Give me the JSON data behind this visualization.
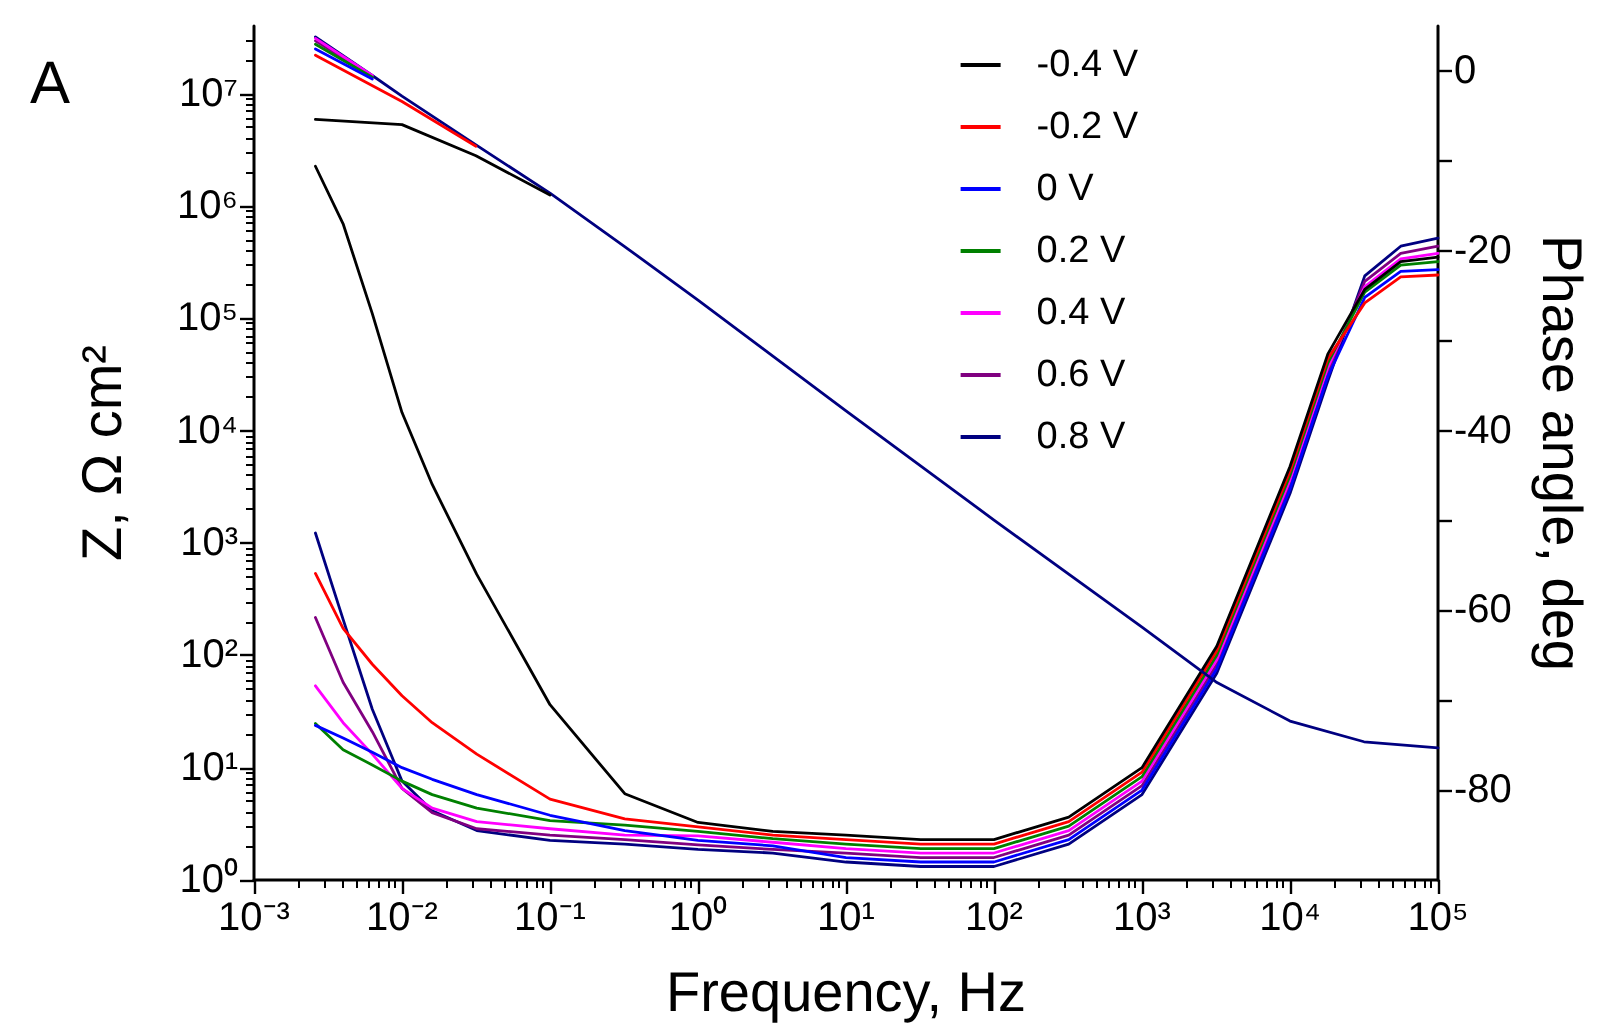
{
  "chart_data": {
    "type": "line",
    "title": "A",
    "xlabel": "Frequency, Hz",
    "ylabel": "Z, Ω cm²",
    "y2label": "Phase angle, deg",
    "log": "xy",
    "grid": false,
    "legend": "top right",
    "xlim": [
      0.001,
      100000
    ],
    "xticks": [
      {
        "value": 0.001,
        "label": "10⁻³"
      },
      {
        "value": 0.01,
        "label": "10⁻²"
      },
      {
        "value": 0.1,
        "label": "10⁻¹"
      },
      {
        "value": 1,
        "label": "10⁰"
      },
      {
        "value": 10,
        "label": "10¹"
      },
      {
        "value": 100,
        "label": "10²"
      },
      {
        "value": 1000,
        "label": "10³"
      },
      {
        "value": 10000,
        "label": "10⁴"
      },
      {
        "value": 100000,
        "label": "10⁵"
      }
    ],
    "ylim": [
      1,
      40000000
    ],
    "yticks": [
      {
        "value": 1,
        "label": "10⁰"
      },
      {
        "value": 10,
        "label": "10¹"
      },
      {
        "value": 100,
        "label": "10²"
      },
      {
        "value": 1000,
        "label": "10³"
      },
      {
        "value": 10000,
        "label": "10⁴"
      },
      {
        "value": 100000,
        "label": "10⁵"
      },
      {
        "value": 1000000,
        "label": "10⁶"
      },
      {
        "value": 10000000,
        "label": "10⁷"
      }
    ],
    "y2lim": [
      -90,
      5
    ],
    "y2ticks": [
      -80,
      {
        "value": -70,
        "label": null
      },
      -60,
      {
        "value": -50,
        "label": null
      },
      -40,
      {
        "value": -30,
        "label": null
      },
      -20,
      {
        "value": -10,
        "label": null
      },
      0
    ],
    "series": [
      {
        "name": "-0.4 V",
        "color": "#000000",
        "x": [
          0.0026,
          0.01,
          0.0316,
          0.1
        ],
        "values": [
          5900000,
          5300000,
          2800000,
          1250000
        ]
      },
      {
        "name": "-0.2 V",
        "color": "#ff0000",
        "x": [
          0.0026,
          0.01,
          0.0316
        ],
        "values": [
          22000000,
          8500000,
          3400000
        ]
      },
      {
        "name": "0 V",
        "color": "#0000ff",
        "x": [
          0.0026,
          0.0063
        ],
        "values": [
          25000000,
          13500000
        ]
      },
      {
        "name": "0.2 V",
        "color": "#008000",
        "x": [
          0.0026,
          0.0063
        ],
        "values": [
          27500000,
          14000000
        ]
      },
      {
        "name": "0.4 V",
        "color": "#ff00ff",
        "x": [
          0.0026,
          0.0063
        ],
        "values": [
          31000000,
          14500000
        ]
      },
      {
        "name": "0.6 V",
        "color": "#800080",
        "x": [
          0.0026,
          0.0063
        ],
        "values": [
          29500000,
          14200000
        ]
      },
      {
        "name": "0.8 V",
        "color": "#000080",
        "x": [
          0.0026,
          0.0063,
          0.01,
          0.0316,
          0.1,
          0.316,
          1,
          10,
          100,
          1000,
          3162,
          10000,
          31623,
          100000
        ],
        "values": [
          32000000,
          14500000,
          9500000,
          3500000,
          1300000,
          440000,
          145000,
          15000,
          1600,
          178,
          58,
          26,
          17,
          15
        ]
      },
      {
        "color": "#000000",
        "axis": "y2",
        "x": [
          0.0026,
          0.004,
          0.0063,
          0.01,
          0.016,
          0.032,
          0.1,
          0.32,
          1,
          3.2,
          10,
          32,
          100,
          320,
          1000,
          3200,
          10000,
          18000,
          32000,
          56000,
          100000
        ],
        "values": [
          -10.6,
          -17,
          -27,
          -38,
          -46,
          -56,
          -70.5,
          -80.4,
          -83.6,
          -84.6,
          -85,
          -85.5,
          -85.5,
          -83,
          -77.5,
          -64,
          -44,
          -31.5,
          -24.3,
          -21.2,
          -20.7
        ]
      },
      {
        "color": "#ff0000",
        "axis": "y2",
        "x": [
          0.0026,
          0.004,
          0.0063,
          0.01,
          0.016,
          0.032,
          0.1,
          0.32,
          1,
          3.2,
          10,
          32,
          100,
          320,
          1000,
          3200,
          10000,
          18000,
          32000,
          56000,
          100000
        ],
        "values": [
          -55.9,
          -62,
          -66,
          -69.5,
          -72.5,
          -76,
          -81,
          -83.2,
          -84.1,
          -85,
          -85.5,
          -86,
          -86,
          -83.5,
          -78,
          -64.5,
          -44.5,
          -32,
          -25.8,
          -22.9,
          -22.7
        ]
      },
      {
        "color": "#0000ff",
        "axis": "y2",
        "x": [
          0.0026,
          0.004,
          0.0063,
          0.01,
          0.016,
          0.032,
          0.1,
          0.32,
          1,
          3.2,
          10,
          32,
          100,
          320,
          1000,
          3200,
          10000,
          18000,
          32000,
          56000,
          100000
        ],
        "values": [
          -72.8,
          -74.2,
          -75.8,
          -77.5,
          -78.8,
          -80.5,
          -82.8,
          -84.5,
          -85.6,
          -86.2,
          -87.5,
          -88,
          -88,
          -85.5,
          -80,
          -66.5,
          -46.5,
          -34,
          -25.2,
          -22.3,
          -22.1
        ]
      },
      {
        "color": "#008000",
        "axis": "y2",
        "x": [
          0.0026,
          0.004,
          0.0063,
          0.01,
          0.016,
          0.032,
          0.1,
          0.32,
          1,
          3.2,
          10,
          32,
          100,
          320,
          1000,
          3200,
          10000,
          18000,
          32000,
          56000,
          100000
        ],
        "values": [
          -72.6,
          -75.5,
          -77.2,
          -79,
          -80.5,
          -82,
          -83.4,
          -83.9,
          -84.6,
          -85.4,
          -86,
          -86.5,
          -86.5,
          -84,
          -78.5,
          -65,
          -45,
          -32.5,
          -24.6,
          -21.6,
          -21.2
        ]
      },
      {
        "color": "#ff00ff",
        "axis": "y2",
        "x": [
          0.0026,
          0.004,
          0.0063,
          0.01,
          0.016,
          0.032,
          0.1,
          0.32,
          1,
          3.2,
          10,
          32,
          100,
          320,
          1000,
          3200,
          10000,
          18000,
          32000,
          56000,
          100000
        ],
        "values": [
          -68.4,
          -72.5,
          -76,
          -79.8,
          -82,
          -83.5,
          -84.3,
          -85,
          -85.1,
          -85.8,
          -86.5,
          -87,
          -87,
          -84.5,
          -79,
          -65.5,
          -45.5,
          -33,
          -24,
          -20.9,
          -20.3
        ]
      },
      {
        "color": "#800080",
        "axis": "y2",
        "x": [
          0.0026,
          0.004,
          0.0063,
          0.01,
          0.016,
          0.032,
          0.1,
          0.32,
          1,
          3.2,
          10,
          32,
          100,
          320,
          1000,
          3200,
          10000,
          18000,
          32000,
          56000,
          100000
        ],
        "values": [
          -60.8,
          -68,
          -73.5,
          -79.8,
          -82.5,
          -84.3,
          -85,
          -85.5,
          -86.1,
          -86.6,
          -87,
          -87.5,
          -87.5,
          -85,
          -79.5,
          -66,
          -46,
          -33.5,
          -23.4,
          -20.3,
          -19.5
        ]
      },
      {
        "color": "#000080",
        "axis": "y2",
        "x": [
          0.0026,
          0.004,
          0.0063,
          0.01,
          0.016,
          0.032,
          0.1,
          0.32,
          1,
          3.2,
          10,
          32,
          100,
          320,
          1000,
          3200,
          10000,
          18000,
          32000,
          56000,
          100000
        ],
        "values": [
          -51.4,
          -61,
          -71,
          -79,
          -82.3,
          -84.5,
          -85.6,
          -86,
          -86.6,
          -87,
          -88,
          -88.5,
          -88.5,
          -86,
          -80.5,
          -67,
          -47,
          -34.5,
          -22.8,
          -19.5,
          -18.6
        ]
      }
    ]
  }
}
